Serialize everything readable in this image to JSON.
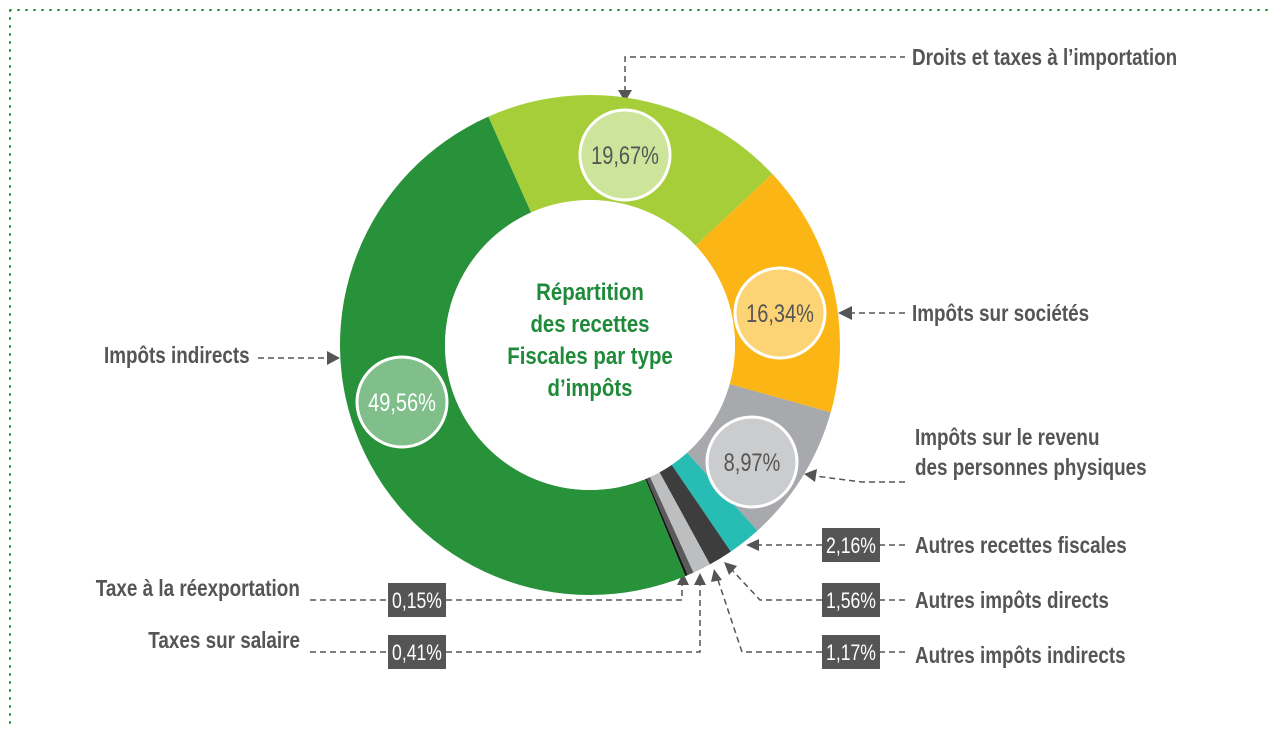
{
  "chart_data": {
    "type": "pie",
    "title": [
      "Répartition",
      "des recettes",
      "Fiscales par type",
      "d’impôts"
    ],
    "categories": [
      "Droits et taxes à l’importation",
      "Impôts sur sociétés",
      "Impôts sur le revenu\ndes personnes physiques",
      "Autres recettes fiscales",
      "Autres impôts directs",
      "Autres impôts indirects",
      "Taxes sur salaire",
      "Taxe à la réexportation",
      "Impôts indirects"
    ],
    "values": [
      19.67,
      16.34,
      8.97,
      2.16,
      1.56,
      1.17,
      0.41,
      0.15,
      49.56
    ],
    "value_labels": [
      "19,67%",
      "16,34%",
      "8,97%",
      "2,16%",
      "1,56%",
      "1,17%",
      "0,41%",
      "0,15%",
      "49,56%"
    ],
    "colors": [
      "#a6ce39",
      "#fbb615",
      "#a7a9ac",
      "#27bdb4",
      "#3d3d3d",
      "#bcbec0",
      "#5a5a5a",
      "#111111",
      "#27923a"
    ]
  }
}
